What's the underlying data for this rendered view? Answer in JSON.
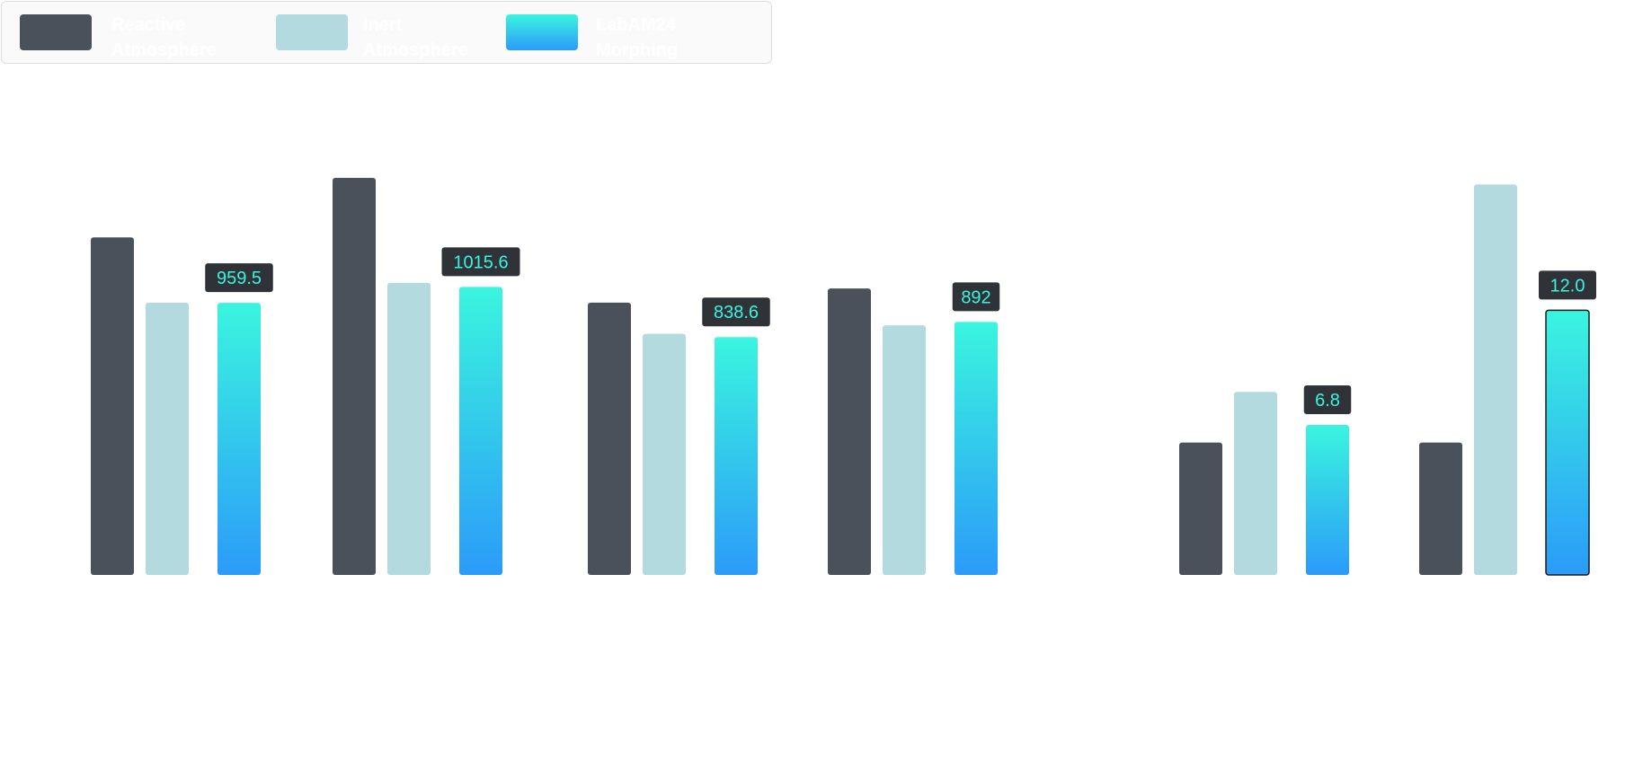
{
  "legend": {
    "items": [
      {
        "label": "Reactive\nAtmosphere",
        "color": "#4a515b"
      },
      {
        "label": "Inert\nAtmosphere",
        "color": "#b3dbdf"
      },
      {
        "label": "LabAM24\nMorphing Shield",
        "color_top": "#3af5df",
        "color_bottom": "#2b9bf9"
      }
    ]
  },
  "colors": {
    "reactive": "#4a515b",
    "inert": "#b3dbdf",
    "shield_top": "#3af5df",
    "shield_bottom": "#2b9bf9",
    "label_bg": "#2f3236",
    "label_text": "#3af5df"
  },
  "chart_data": {
    "type": "bar",
    "title": "",
    "series": [
      {
        "name": "Reactive Atmosphere",
        "values": [
          1190,
          1400,
          960,
          1010,
          6.0,
          6.0
        ]
      },
      {
        "name": "Inert Atmosphere",
        "values": [
          960,
          1030,
          850,
          880,
          8.3,
          17.7
        ]
      },
      {
        "name": "LabAM24 Morphing Shield",
        "values": [
          959.5,
          1015.6,
          838.6,
          892,
          6.8,
          12.0
        ]
      }
    ],
    "data_labels": [
      "959.5",
      "1015.6",
      "838.6",
      "892",
      "6.8",
      "12.0"
    ],
    "groups": [
      {
        "scale_max": 1400
      },
      {
        "scale_max": 18
      }
    ],
    "grid": false,
    "legend_position": "top-left"
  }
}
